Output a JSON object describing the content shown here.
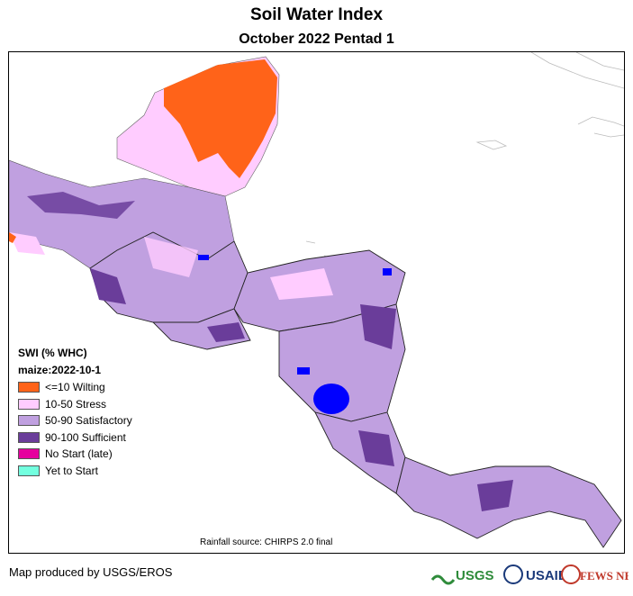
{
  "title": "Soil Water Index",
  "subtitle": "October 2022 Pentad 1",
  "legend": {
    "title": "SWI (% WHC)",
    "subtitle": "maize:2022-10-1",
    "items": [
      {
        "label": "<=10 Wilting",
        "color": "#ff6319"
      },
      {
        "label": "10-50 Stress",
        "color": "#ffccff"
      },
      {
        "label": "50-90 Satisfactory",
        "color": "#c0a0e0"
      },
      {
        "label": "90-100 Sufficient",
        "color": "#6a3d9a"
      },
      {
        "label": "No Start (late)",
        "color": "#e6009e"
      },
      {
        "label": "Yet to Start",
        "color": "#73ffdf"
      }
    ]
  },
  "rainfall_source": "Rainfall source: CHIRPS 2.0 final",
  "producer": "Map produced by USGS/EROS",
  "logos": {
    "usgs": "USGS",
    "usaid": "USAID",
    "fewsnet": "FEWS NET"
  }
}
